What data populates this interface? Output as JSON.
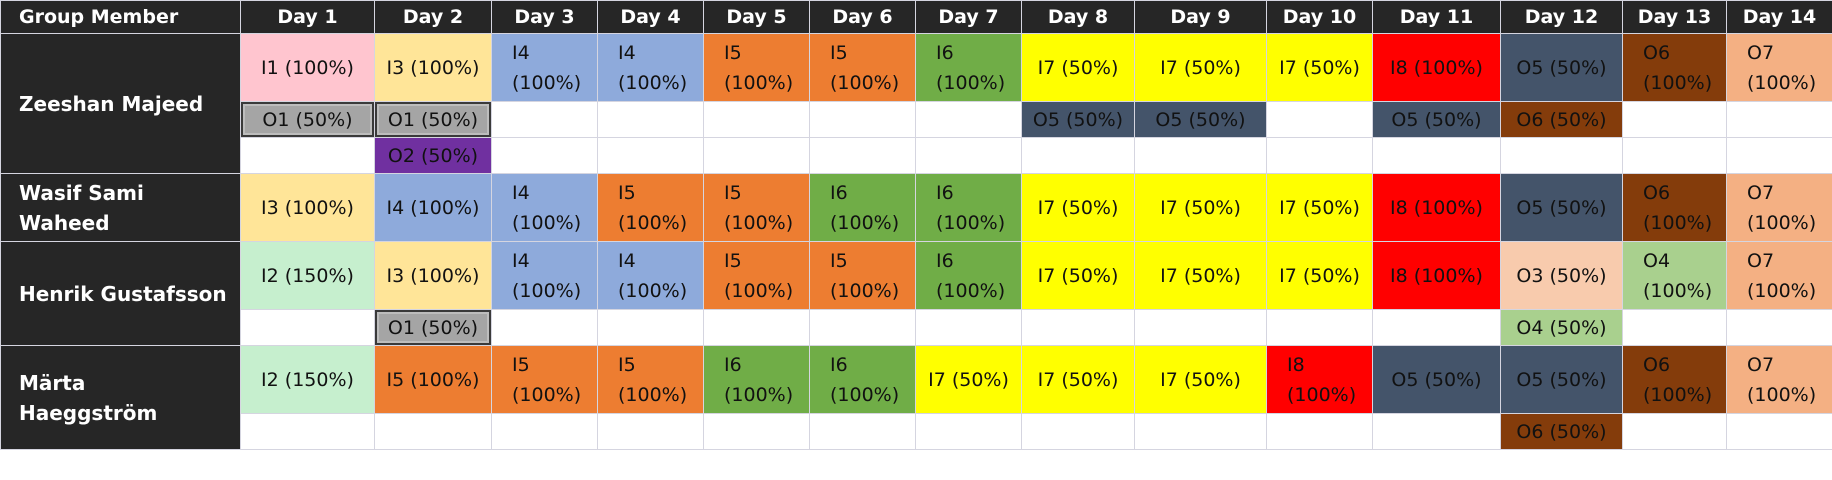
{
  "header": {
    "member_label": "Group Member",
    "days": [
      "Day 1",
      "Day 2",
      "Day 3",
      "Day 4",
      "Day 5",
      "Day 6",
      "Day 7",
      "Day 8",
      "Day 9",
      "Day 10",
      "Day 11",
      "Day 12",
      "Day 13",
      "Day 14"
    ]
  },
  "palette": {
    "pink": "#ffc5cf",
    "cream": "#ffe598",
    "blue": "#8eaadb",
    "orange": "#ed7d31",
    "green": "#70ad47",
    "yellow": "#ffff00",
    "red": "#ff0000",
    "slate": "#44546a",
    "brown": "#843c0b",
    "salmon": "#f4b083",
    "gray": "#a5a5a5",
    "purple": "#7030a0",
    "mint": "#c6efce",
    "peach": "#f8cbad",
    "light_green": "#a9d08e"
  },
  "members": [
    {
      "name": "Zeeshan Majeed",
      "rows": [
        [
          {
            "text": "I1 (100%)",
            "color": "pink"
          },
          {
            "text": "I3 (100%)",
            "color": "cream"
          },
          {
            "text": "I4 (100%)",
            "color": "blue"
          },
          {
            "text": "I4 (100%)",
            "color": "blue"
          },
          {
            "text": "I5 (100%)",
            "color": "orange"
          },
          {
            "text": "I5 (100%)",
            "color": "orange"
          },
          {
            "text": "I6 (100%)",
            "color": "green"
          },
          {
            "text": "I7 (50%)",
            "color": "yellow"
          },
          {
            "text": "I7 (50%)",
            "color": "yellow"
          },
          {
            "text": "I7 (50%)",
            "color": "yellow"
          },
          {
            "text": "I8 (100%)",
            "color": "red"
          },
          {
            "text": "O5 (50%)",
            "color": "slate"
          },
          {
            "text": "O6 (100%)",
            "color": "brown"
          },
          {
            "text": "O7 (100%)",
            "color": "salmon"
          }
        ],
        [
          {
            "text": "O1 (50%)",
            "color": "gray"
          },
          {
            "text": "O1 (50%)",
            "color": "gray"
          },
          {
            "text": "",
            "color": "empty"
          },
          {
            "text": "",
            "color": "empty"
          },
          {
            "text": "",
            "color": "empty"
          },
          {
            "text": "",
            "color": "empty"
          },
          {
            "text": "",
            "color": "empty"
          },
          {
            "text": "O5 (50%)",
            "color": "slate"
          },
          {
            "text": "O5 (50%)",
            "color": "slate"
          },
          {
            "text": "",
            "color": "empty"
          },
          {
            "text": "O5 (50%)",
            "color": "slate"
          },
          {
            "text": "O6 (50%)",
            "color": "brown"
          },
          {
            "text": "",
            "color": "empty"
          },
          {
            "text": "",
            "color": "empty"
          }
        ],
        [
          {
            "text": "",
            "color": "empty"
          },
          {
            "text": "O2 (50%)",
            "color": "purple"
          },
          {
            "text": "",
            "color": "empty"
          },
          {
            "text": "",
            "color": "empty"
          },
          {
            "text": "",
            "color": "empty"
          },
          {
            "text": "",
            "color": "empty"
          },
          {
            "text": "",
            "color": "empty"
          },
          {
            "text": "",
            "color": "empty"
          },
          {
            "text": "",
            "color": "empty"
          },
          {
            "text": "",
            "color": "empty"
          },
          {
            "text": "",
            "color": "empty"
          },
          {
            "text": "",
            "color": "empty"
          },
          {
            "text": "",
            "color": "empty"
          },
          {
            "text": "",
            "color": "empty"
          }
        ]
      ]
    },
    {
      "name": "Wasif Sami Waheed",
      "rows": [
        [
          {
            "text": "I3 (100%)",
            "color": "cream"
          },
          {
            "text": "I4 (100%)",
            "color": "blue"
          },
          {
            "text": "I4 (100%)",
            "color": "blue"
          },
          {
            "text": "I5 (100%)",
            "color": "orange"
          },
          {
            "text": "I5 (100%)",
            "color": "orange"
          },
          {
            "text": "I6 (100%)",
            "color": "green"
          },
          {
            "text": "I6 (100%)",
            "color": "green"
          },
          {
            "text": "I7 (50%)",
            "color": "yellow"
          },
          {
            "text": "I7 (50%)",
            "color": "yellow"
          },
          {
            "text": "I7 (50%)",
            "color": "yellow"
          },
          {
            "text": "I8 (100%)",
            "color": "red"
          },
          {
            "text": "O5 (50%)",
            "color": "slate"
          },
          {
            "text": "O6 (100%)",
            "color": "brown"
          },
          {
            "text": "O7 (100%)",
            "color": "salmon"
          }
        ]
      ]
    },
    {
      "name": "Henrik Gustafsson",
      "rows": [
        [
          {
            "text": "I2 (150%)",
            "color": "mint"
          },
          {
            "text": "I3 (100%)",
            "color": "cream"
          },
          {
            "text": "I4 (100%)",
            "color": "blue"
          },
          {
            "text": "I4 (100%)",
            "color": "blue"
          },
          {
            "text": "I5 (100%)",
            "color": "orange"
          },
          {
            "text": "I5 (100%)",
            "color": "orange"
          },
          {
            "text": "I6 (100%)",
            "color": "green"
          },
          {
            "text": "I7 (50%)",
            "color": "yellow"
          },
          {
            "text": "I7 (50%)",
            "color": "yellow"
          },
          {
            "text": "I7 (50%)",
            "color": "yellow"
          },
          {
            "text": "I8 (100%)",
            "color": "red"
          },
          {
            "text": "O3 (50%)",
            "color": "peach"
          },
          {
            "text": "O4 (100%)",
            "color": "light_green"
          },
          {
            "text": "O7 (100%)",
            "color": "salmon"
          }
        ],
        [
          {
            "text": "",
            "color": "empty"
          },
          {
            "text": "O1 (50%)",
            "color": "gray"
          },
          {
            "text": "",
            "color": "empty"
          },
          {
            "text": "",
            "color": "empty"
          },
          {
            "text": "",
            "color": "empty"
          },
          {
            "text": "",
            "color": "empty"
          },
          {
            "text": "",
            "color": "empty"
          },
          {
            "text": "",
            "color": "empty"
          },
          {
            "text": "",
            "color": "empty"
          },
          {
            "text": "",
            "color": "empty"
          },
          {
            "text": "",
            "color": "empty"
          },
          {
            "text": "O4 (50%)",
            "color": "light_green"
          },
          {
            "text": "",
            "color": "empty"
          },
          {
            "text": "",
            "color": "empty"
          }
        ]
      ]
    },
    {
      "name": "Märta Haeggström",
      "rows": [
        [
          {
            "text": "I2 (150%)",
            "color": "mint"
          },
          {
            "text": "I5 (100%)",
            "color": "orange"
          },
          {
            "text": "I5 (100%)",
            "color": "orange"
          },
          {
            "text": "I5 (100%)",
            "color": "orange"
          },
          {
            "text": "I6 (100%)",
            "color": "green"
          },
          {
            "text": "I6 (100%)",
            "color": "green"
          },
          {
            "text": "I7 (50%)",
            "color": "yellow"
          },
          {
            "text": "I7 (50%)",
            "color": "yellow"
          },
          {
            "text": "I7 (50%)",
            "color": "yellow"
          },
          {
            "text": "I8 (100%)",
            "color": "red"
          },
          {
            "text": "O5 (50%)",
            "color": "slate"
          },
          {
            "text": "O5 (50%)",
            "color": "slate"
          },
          {
            "text": "O6 (100%)",
            "color": "brown"
          },
          {
            "text": "O7 (100%)",
            "color": "salmon"
          }
        ],
        [
          {
            "text": "",
            "color": "empty"
          },
          {
            "text": "",
            "color": "empty"
          },
          {
            "text": "",
            "color": "empty"
          },
          {
            "text": "",
            "color": "empty"
          },
          {
            "text": "",
            "color": "empty"
          },
          {
            "text": "",
            "color": "empty"
          },
          {
            "text": "",
            "color": "empty"
          },
          {
            "text": "",
            "color": "empty"
          },
          {
            "text": "",
            "color": "empty"
          },
          {
            "text": "",
            "color": "empty"
          },
          {
            "text": "",
            "color": "empty"
          },
          {
            "text": "O6 (50%)",
            "color": "brown"
          },
          {
            "text": "",
            "color": "empty"
          },
          {
            "text": "",
            "color": "empty"
          }
        ]
      ]
    }
  ]
}
